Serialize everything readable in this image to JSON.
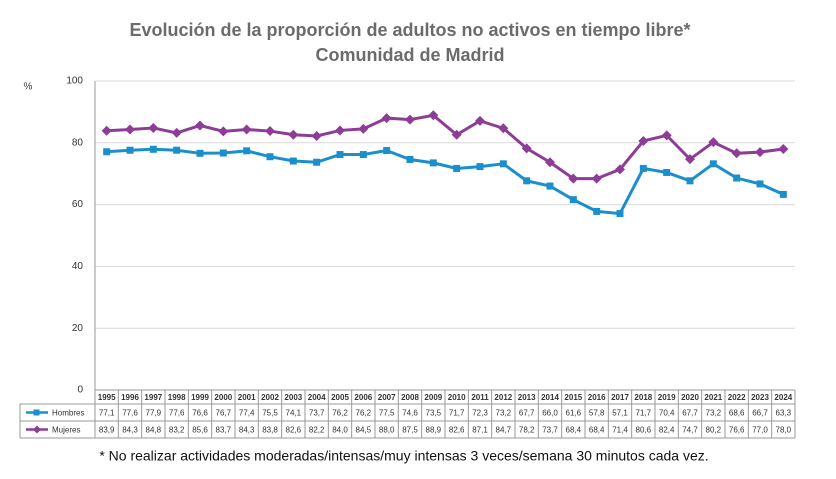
{
  "chart_data": {
    "type": "line",
    "title": "Evolución de la proporción de adultos no activos en tiempo libre*",
    "subtitle": "Comunidad de Madrid",
    "y_label": "%",
    "footnote": "* No realizar actividades moderadas/intensas/muy intensas 3 veces/semana 30 minutos cada vez.",
    "categories": [
      "1995",
      "1996",
      "1997",
      "1998",
      "1999",
      "2000",
      "2001",
      "2002",
      "2003",
      "2004",
      "2005",
      "2006",
      "2007",
      "2008",
      "2009",
      "2010",
      "2011",
      "2012",
      "2013",
      "2014",
      "2015",
      "2016",
      "2017",
      "2018",
      "2019",
      "2020",
      "2021",
      "2022",
      "2023",
      "2024"
    ],
    "series": [
      {
        "name": "Hombres",
        "color": "#1b8fcc",
        "marker": "square",
        "values": [
          77.1,
          77.6,
          77.9,
          77.6,
          76.6,
          76.7,
          77.4,
          75.5,
          74.1,
          73.7,
          76.2,
          76.2,
          77.5,
          74.6,
          73.5,
          71.7,
          72.3,
          73.2,
          67.7,
          66.0,
          61.6,
          57.8,
          57.1,
          71.7,
          70.4,
          67.7,
          73.2,
          68.6,
          66.7,
          63.3
        ],
        "value_labels": [
          "77,1",
          "77,6",
          "77,9",
          "77,6",
          "76,6",
          "76,7",
          "77,4",
          "75,5",
          "74,1",
          "73,7",
          "76,2",
          "76,2",
          "77,5",
          "74,6",
          "73,5",
          "71,7",
          "72,3",
          "73,2",
          "67,7",
          "66,0",
          "61,6",
          "57,8",
          "57,1",
          "71,7",
          "70,4",
          "67,7",
          "73,2",
          "68,6",
          "66,7",
          "63,3"
        ]
      },
      {
        "name": "Mujeres",
        "color": "#8e3d97",
        "marker": "diamond",
        "values": [
          83.9,
          84.3,
          84.8,
          83.2,
          85.6,
          83.7,
          84.3,
          83.8,
          82.6,
          82.2,
          84.0,
          84.5,
          88.0,
          87.5,
          88.9,
          82.6,
          87.1,
          84.7,
          78.2,
          73.7,
          68.4,
          68.4,
          71.4,
          80.6,
          82.4,
          74.7,
          80.2,
          76.6,
          77.0,
          78.0
        ],
        "value_labels": [
          "83,9",
          "84,3",
          "84,8",
          "83,2",
          "85,6",
          "83,7",
          "84,3",
          "83,8",
          "82,6",
          "82,2",
          "84,0",
          "84,5",
          "88,0",
          "87,5",
          "88,9",
          "82,6",
          "87,1",
          "84,7",
          "78,2",
          "73,7",
          "68,4",
          "68,4",
          "71,4",
          "80,6",
          "82,4",
          "74,7",
          "80,2",
          "76,6",
          "77,0",
          "78,0"
        ]
      }
    ],
    "ylim": [
      0,
      100
    ],
    "yticks": [
      0,
      20,
      40,
      60,
      80,
      100
    ],
    "grid": true
  }
}
